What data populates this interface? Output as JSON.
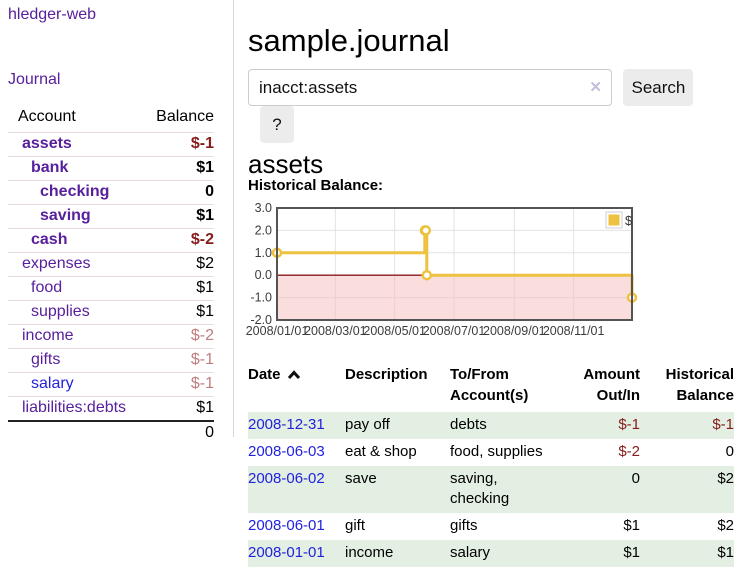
{
  "sidebar": {
    "app_title": "hledger-web",
    "nav": {
      "journal_label": "Journal"
    },
    "accounts_table": {
      "col_account": "Account",
      "col_balance": "Balance",
      "rows": [
        {
          "name": "assets",
          "balance": "$-1",
          "level": 0,
          "bold": true,
          "neg": "strong",
          "link": "purple"
        },
        {
          "name": "bank",
          "balance": "$1",
          "level": 1,
          "bold": true,
          "neg": null,
          "link": "purple"
        },
        {
          "name": "checking",
          "balance": "0",
          "level": 2,
          "bold": true,
          "neg": null,
          "link": "purple"
        },
        {
          "name": "saving",
          "balance": "$1",
          "level": 2,
          "bold": true,
          "neg": null,
          "link": "purple"
        },
        {
          "name": "cash",
          "balance": "$-2",
          "level": 1,
          "bold": true,
          "neg": "strong",
          "link": "purple"
        },
        {
          "name": "expenses",
          "balance": "$2",
          "level": 0,
          "bold": false,
          "neg": null,
          "link": "purple"
        },
        {
          "name": "food",
          "balance": "$1",
          "level": 1,
          "bold": false,
          "neg": null,
          "link": "purple"
        },
        {
          "name": "supplies",
          "balance": "$1",
          "level": 1,
          "bold": false,
          "neg": null,
          "link": "purple"
        },
        {
          "name": "income",
          "balance": "$-2",
          "level": 0,
          "bold": false,
          "neg": "muted",
          "link": "purple"
        },
        {
          "name": "gifts",
          "balance": "$-1",
          "level": 1,
          "bold": false,
          "neg": "muted",
          "link": "purple"
        },
        {
          "name": "salary",
          "balance": "$-1",
          "level": 1,
          "bold": false,
          "neg": "muted",
          "link": "blue"
        },
        {
          "name": "liabilities:debts",
          "balance": "$1",
          "level": 0,
          "bold": false,
          "neg": null,
          "link": "purple"
        }
      ],
      "total": "0"
    }
  },
  "header": {
    "title": "sample.journal"
  },
  "search": {
    "value": "inacct:assets",
    "clear_icon": "✕",
    "search_button": "Search",
    "help_button": "?"
  },
  "account_page": {
    "heading": "assets",
    "chart_label": "Historical Balance:"
  },
  "chart_data": {
    "type": "line",
    "step": true,
    "title": "Historical Balance",
    "x_range": [
      "2008-01-01",
      "2008-12-31"
    ],
    "ylim": [
      -2.0,
      3.0
    ],
    "grid": true,
    "legend_position": "top-right",
    "x_ticks": [
      {
        "date": "2008-01-01",
        "label": "2008/01/01"
      },
      {
        "date": "2008-03-01",
        "label": "2008/03/01"
      },
      {
        "date": "2008-05-01",
        "label": "2008/05/01"
      },
      {
        "date": "2008-07-01",
        "label": "2008/07/01"
      },
      {
        "date": "2008-09-01",
        "label": "2008/09/01"
      },
      {
        "date": "2008-11-01",
        "label": "2008/11/01"
      }
    ],
    "y_ticks": [
      {
        "value": 3.0,
        "label": "3.0"
      },
      {
        "value": 2.0,
        "label": "2.0"
      },
      {
        "value": 1.0,
        "label": "1.0"
      },
      {
        "value": 0.0,
        "label": "0.0"
      },
      {
        "value": -1.0,
        "label": "-1.0"
      },
      {
        "value": -2.0,
        "label": "-2.0"
      }
    ],
    "series": [
      {
        "name": "$",
        "color": "#edc240",
        "points": [
          [
            "2008-01-01",
            1
          ],
          [
            "2008-06-01",
            2
          ],
          [
            "2008-06-02",
            2
          ],
          [
            "2008-06-03",
            0
          ],
          [
            "2008-12-31",
            -1
          ]
        ]
      }
    ],
    "colors": {
      "grid_line": "#e3e3e3",
      "plot_border": "#545454",
      "negative_region": "#f6bcbc",
      "zero_line": "#8b1a1a",
      "axis_text": "#3c3c3c"
    }
  },
  "register": {
    "columns": [
      "Date",
      "Description",
      "To/From Account(s)",
      "Amount Out/In",
      "Historical Balance"
    ],
    "sort_icon": "chevron-up",
    "rows": [
      {
        "date": "2008-12-31",
        "description": "pay off",
        "accounts": "debts",
        "amount": "$-1",
        "balance": "$-1",
        "amount_neg": true,
        "balance_neg": true
      },
      {
        "date": "2008-06-03",
        "description": "eat & shop",
        "accounts": "food, supplies",
        "amount": "$-2",
        "balance": "0",
        "amount_neg": true,
        "balance_neg": false
      },
      {
        "date": "2008-06-02",
        "description": "save",
        "accounts": "saving, checking",
        "amount": "0",
        "balance": "$2",
        "amount_neg": false,
        "balance_neg": false
      },
      {
        "date": "2008-06-01",
        "description": "gift",
        "accounts": "gifts",
        "amount": "$1",
        "balance": "$2",
        "amount_neg": false,
        "balance_neg": false
      },
      {
        "date": "2008-01-01",
        "description": "income",
        "accounts": "salary",
        "amount": "$1",
        "balance": "$1",
        "amount_neg": false,
        "balance_neg": false
      }
    ]
  }
}
